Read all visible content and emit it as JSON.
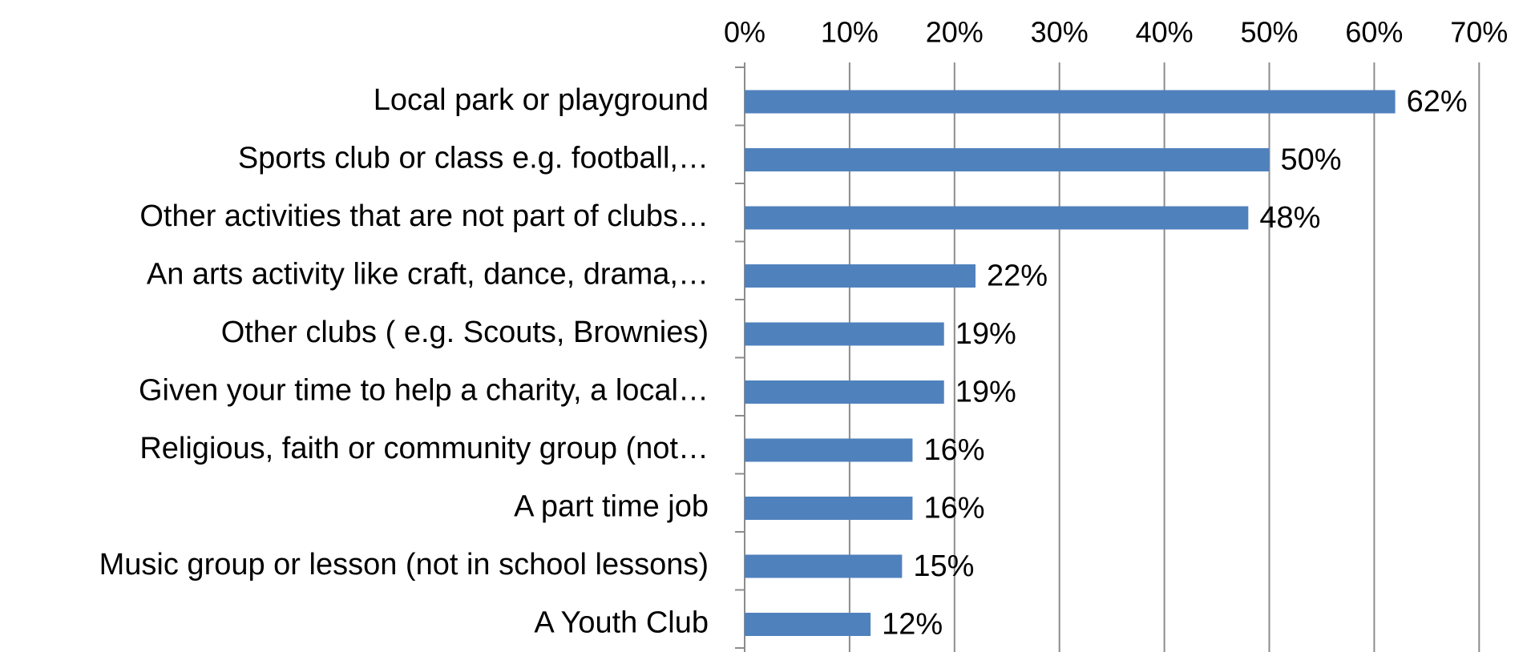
{
  "chart_data": {
    "type": "bar",
    "orientation": "horizontal",
    "categories": [
      "Local park or playground",
      "Sports club or class e.g. football,…",
      "Other activities that are not part of clubs…",
      "An arts activity like craft, dance, drama,…",
      "Other clubs ( e.g. Scouts, Brownies)",
      "Given your time to help a charity, a local…",
      "Religious, faith or community group (not…",
      "A part time job",
      "Music group or lesson (not in school lessons)",
      "A Youth Club"
    ],
    "values": [
      62,
      50,
      48,
      22,
      19,
      19,
      16,
      16,
      15,
      12
    ],
    "data_labels": [
      "62%",
      "50%",
      "48%",
      "22%",
      "19%",
      "19%",
      "16%",
      "16%",
      "15%",
      "12%"
    ],
    "x_ticks": [
      "0%",
      "10%",
      "20%",
      "30%",
      "40%",
      "50%",
      "60%",
      "70%"
    ],
    "xlim": [
      0,
      70
    ],
    "x_axis_position": "top",
    "grid": true,
    "bar_color": "#4f81bd",
    "title": "",
    "xlabel": "",
    "ylabel": ""
  }
}
